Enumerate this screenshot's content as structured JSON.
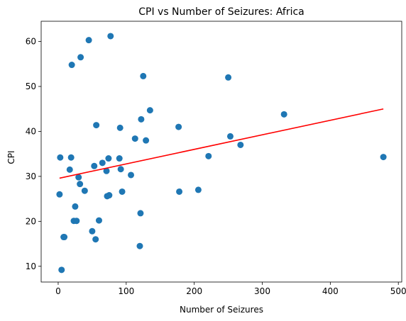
{
  "chart_data": {
    "type": "scatter",
    "title": "CPI vs Number of Seizures: Africa",
    "xlabel": "Number of Seizures",
    "ylabel": "CPI",
    "xlim": [
      -25,
      505
    ],
    "ylim": [
      6.5,
      64.5
    ],
    "xticks": [
      0,
      100,
      200,
      300,
      400,
      500
    ],
    "yticks": [
      10,
      20,
      30,
      40,
      50,
      60
    ],
    "grid": false,
    "legend": "none",
    "colors": {
      "points": "#1f77b4",
      "regression": "#ff0000"
    },
    "points": [
      {
        "x": 2,
        "y": 26
      },
      {
        "x": 3,
        "y": 34.2
      },
      {
        "x": 5,
        "y": 9.2
      },
      {
        "x": 8,
        "y": 16.5
      },
      {
        "x": 9,
        "y": 16.5
      },
      {
        "x": 17,
        "y": 31.5
      },
      {
        "x": 19,
        "y": 34.2
      },
      {
        "x": 20,
        "y": 54.8
      },
      {
        "x": 23,
        "y": 20.1
      },
      {
        "x": 25,
        "y": 23.3
      },
      {
        "x": 27,
        "y": 20.1
      },
      {
        "x": 30,
        "y": 29.8
      },
      {
        "x": 32,
        "y": 28.3
      },
      {
        "x": 33,
        "y": 56.5
      },
      {
        "x": 39,
        "y": 26.8
      },
      {
        "x": 45,
        "y": 60.3
      },
      {
        "x": 50,
        "y": 17.8
      },
      {
        "x": 53,
        "y": 32.3
      },
      {
        "x": 55,
        "y": 16
      },
      {
        "x": 56,
        "y": 41.4
      },
      {
        "x": 60,
        "y": 20.2
      },
      {
        "x": 65,
        "y": 33
      },
      {
        "x": 71,
        "y": 31.2
      },
      {
        "x": 72,
        "y": 25.6
      },
      {
        "x": 74,
        "y": 34
      },
      {
        "x": 75,
        "y": 25.8
      },
      {
        "x": 77,
        "y": 61.2
      },
      {
        "x": 90,
        "y": 34
      },
      {
        "x": 91,
        "y": 40.8
      },
      {
        "x": 92,
        "y": 31.6
      },
      {
        "x": 94,
        "y": 26.6
      },
      {
        "x": 107,
        "y": 30.3
      },
      {
        "x": 113,
        "y": 38.4
      },
      {
        "x": 120,
        "y": 14.5
      },
      {
        "x": 121,
        "y": 21.8
      },
      {
        "x": 122,
        "y": 42.7
      },
      {
        "x": 125,
        "y": 52.3
      },
      {
        "x": 129,
        "y": 38
      },
      {
        "x": 135,
        "y": 44.7
      },
      {
        "x": 177,
        "y": 41
      },
      {
        "x": 178,
        "y": 26.6
      },
      {
        "x": 206,
        "y": 27
      },
      {
        "x": 221,
        "y": 34.5
      },
      {
        "x": 250,
        "y": 52
      },
      {
        "x": 253,
        "y": 38.9
      },
      {
        "x": 268,
        "y": 37
      },
      {
        "x": 332,
        "y": 43.8
      },
      {
        "x": 478,
        "y": 34.3
      }
    ],
    "regression": {
      "x": [
        2,
        478
      ],
      "y": [
        29.6,
        45
      ]
    }
  }
}
